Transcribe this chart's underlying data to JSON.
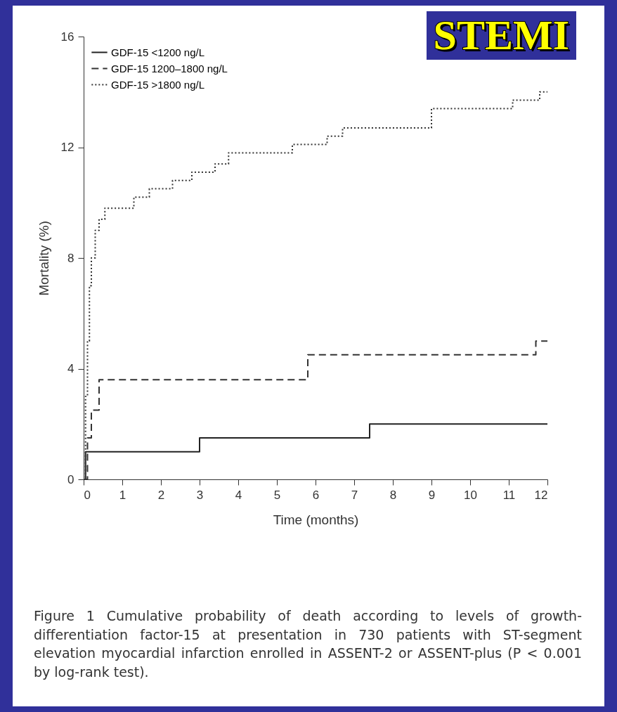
{
  "chart_data": {
    "type": "step",
    "title": "STEMI",
    "xlabel": "Time (months)",
    "ylabel": "Mortality (%)",
    "annotations": [
      "Figure 1 Cumulative probability of death according to levels of growth-differentiation factor-15 at presentation in 730 patients with ST-segment elevation myocardial infarction enrolled in ASSENT-2 or ASSENT-plus (P < 0.001 by log-rank test)."
    ],
    "series": [
      {
        "name": "GDF-15 <1200 ng/L",
        "color": "#222222",
        "line_style": "solid",
        "x": [
          0,
          0.05,
          3,
          7.4,
          12
        ],
        "values": [
          0,
          1.0,
          1.5,
          2.0,
          2.0
        ]
      },
      {
        "name": "GDF-15 1200–1800 ng/L",
        "color": "#333333",
        "line_style": "dashed",
        "x": [
          0,
          0.1,
          0.2,
          0.4,
          5.8,
          11.7,
          12
        ],
        "values": [
          0,
          1.5,
          2.5,
          3.6,
          4.5,
          5.0,
          5.0
        ]
      },
      {
        "name": "GDF-15 >1800 ng/L",
        "color": "#333333",
        "line_style": "dotted",
        "x": [
          0,
          0.05,
          0.1,
          0.15,
          0.2,
          0.3,
          0.4,
          0.55,
          1.3,
          1.7,
          2.3,
          2.8,
          3.4,
          3.75,
          5.4,
          6.3,
          6.7,
          9.0,
          11.1,
          11.8,
          12
        ],
        "values": [
          0,
          3,
          5,
          7,
          8,
          9,
          9.4,
          9.8,
          10.2,
          10.5,
          10.8,
          11.1,
          11.4,
          11.8,
          12.1,
          12.4,
          12.7,
          13.4,
          13.7,
          14.0,
          14.0
        ]
      }
    ],
    "xlim": [
      0,
      12
    ],
    "xticks": [
      0,
      1,
      2,
      3,
      4,
      5,
      6,
      7,
      8,
      9,
      10,
      11,
      12
    ],
    "ylim": [
      0,
      16
    ],
    "yticks": [
      0,
      4,
      8,
      12,
      16
    ],
    "grid": false,
    "legend": "top left",
    "marker": "none"
  }
}
